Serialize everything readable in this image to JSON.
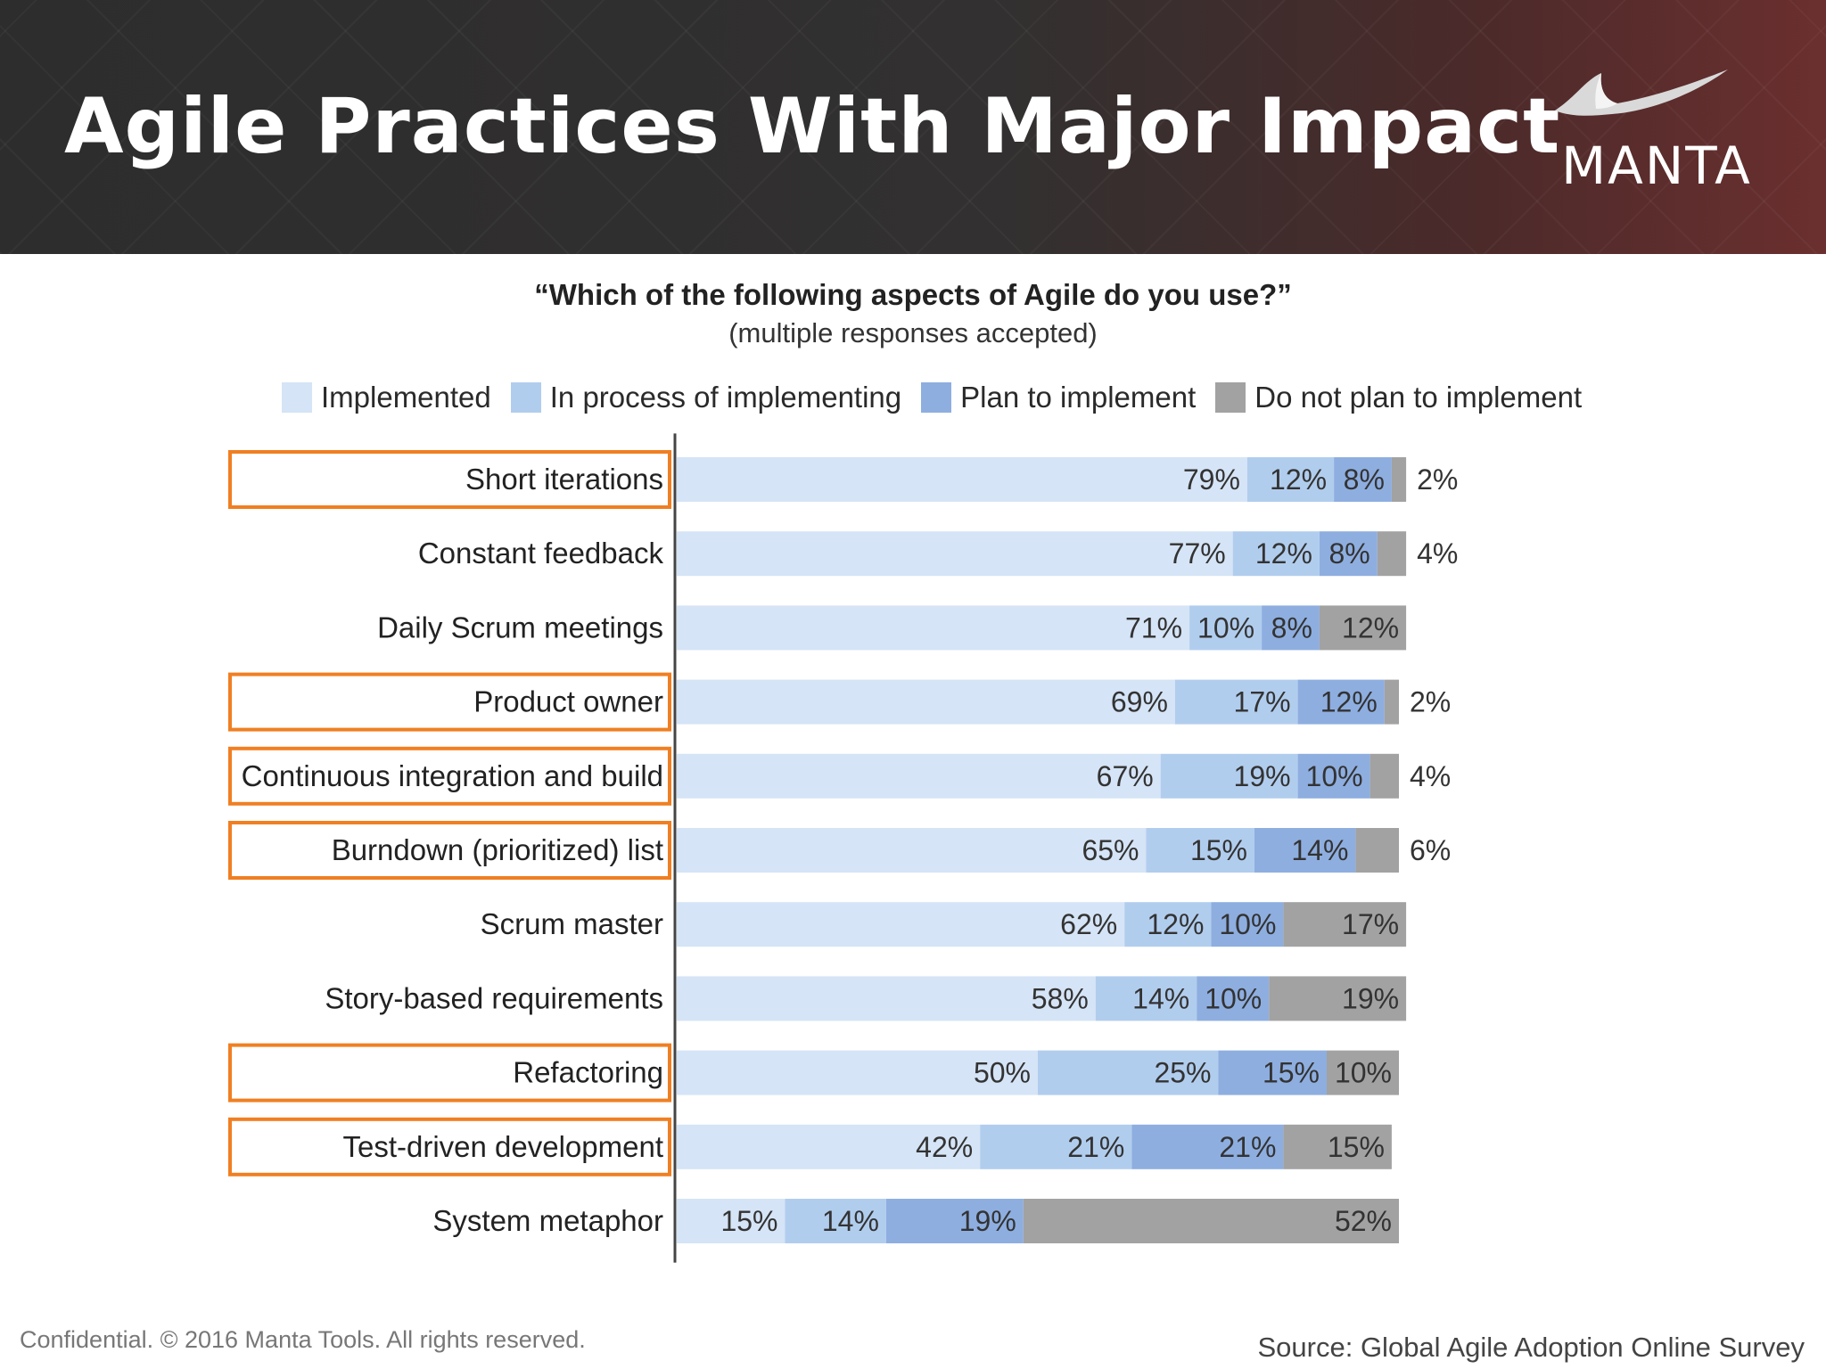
{
  "header": {
    "title": "Agile Practices With Major Impact",
    "logo_text": "MANTA"
  },
  "chart_data": {
    "type": "bar",
    "orientation": "horizontal",
    "stacked": true,
    "title": "“Which of the following aspects of Agile do you use?”",
    "subtitle": "(multiple responses accepted)",
    "xlabel": "",
    "ylabel": "",
    "xlim": [
      0,
      100
    ],
    "grid": false,
    "legend_position": "top",
    "categories": [
      "Short iterations",
      "Constant feedback",
      "Daily Scrum meetings",
      "Product owner",
      "Continuous integration and build",
      "Burndown (prioritized) list",
      "Scrum master",
      "Story-based requirements",
      "Refactoring",
      "Test-driven development",
      "System metaphor"
    ],
    "highlighted": [
      "Short iterations",
      "Product owner",
      "Continuous integration and build",
      "Burndown (prioritized) list",
      "Refactoring",
      "Test-driven development"
    ],
    "series": [
      {
        "name": "Implemented",
        "color": "#d5e4f6",
        "values": [
          79,
          77,
          71,
          69,
          67,
          65,
          62,
          58,
          50,
          42,
          15
        ]
      },
      {
        "name": "In process of implementing",
        "color": "#b1cdee",
        "values": [
          12,
          12,
          10,
          17,
          19,
          15,
          12,
          14,
          25,
          21,
          14
        ]
      },
      {
        "name": "Plan to implement",
        "color": "#8eaee0",
        "values": [
          8,
          8,
          8,
          12,
          10,
          14,
          10,
          10,
          15,
          21,
          19
        ]
      },
      {
        "name": "Do not plan to implement",
        "color": "#a2a2a2",
        "values": [
          2,
          4,
          12,
          2,
          4,
          6,
          17,
          19,
          10,
          15,
          52
        ]
      }
    ],
    "highlight_color": "#f07f22",
    "axis_color": "#444444"
  },
  "footer": {
    "confidential": "Confidential. © 2016 Manta Tools. All rights reserved.",
    "source": "Source: Global Agile Adoption Online Survey"
  }
}
